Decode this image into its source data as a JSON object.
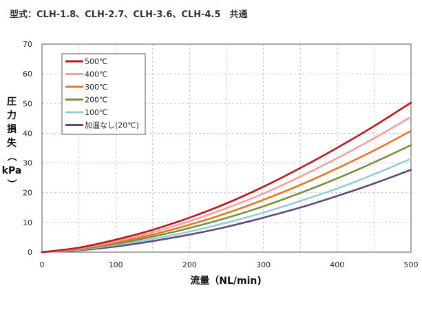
{
  "header": {
    "title": "型式：CLH-1.8、CLH-2.7、CLH-3.6、CLH-4.5　共通"
  },
  "chart_data": {
    "type": "line",
    "xlabel": "流量（NL/min)",
    "ylabel_chars": [
      "圧",
      "力",
      "損",
      "失",
      "（",
      "kPa",
      "）"
    ],
    "xlim": [
      0,
      500
    ],
    "ylim": [
      0,
      70
    ],
    "xticks": [
      0,
      100,
      200,
      300,
      400,
      500
    ],
    "yticks": [
      0,
      10,
      20,
      30,
      40,
      50,
      60,
      70
    ],
    "grid": true,
    "legend_position": "top-left",
    "x": [
      0,
      50,
      100,
      150,
      200,
      250,
      300,
      350,
      400,
      450,
      500
    ],
    "series": [
      {
        "name": "500℃",
        "color": "#c0141c",
        "values": [
          0,
          1.5,
          4.2,
          7.5,
          11.6,
          16.4,
          22.0,
          28.3,
          35.1,
          42.4,
          50.3
        ]
      },
      {
        "name": "400℃",
        "color": "#f5a0a0",
        "values": [
          0,
          1.3,
          3.7,
          6.7,
          10.4,
          14.8,
          19.7,
          25.4,
          31.6,
          38.3,
          45.5
        ]
      },
      {
        "name": "300℃",
        "color": "#e87722",
        "values": [
          0,
          1.1,
          3.2,
          5.9,
          9.2,
          13.1,
          17.6,
          22.6,
          28.2,
          34.2,
          40.8
        ]
      },
      {
        "name": "200℃",
        "color": "#76923c",
        "values": [
          0,
          1.0,
          2.8,
          5.2,
          8.1,
          11.5,
          15.4,
          19.9,
          24.8,
          30.2,
          36.0
        ]
      },
      {
        "name": "100℃",
        "color": "#92cddc",
        "values": [
          0,
          0.8,
          2.4,
          4.4,
          6.9,
          9.9,
          13.3,
          17.2,
          21.4,
          26.2,
          31.4
        ]
      },
      {
        "name": "加温なし(20℃)",
        "color": "#604a7b",
        "values": [
          0,
          0.6,
          1.9,
          3.7,
          5.9,
          8.5,
          11.6,
          15.0,
          18.9,
          23.1,
          27.7
        ]
      }
    ]
  }
}
